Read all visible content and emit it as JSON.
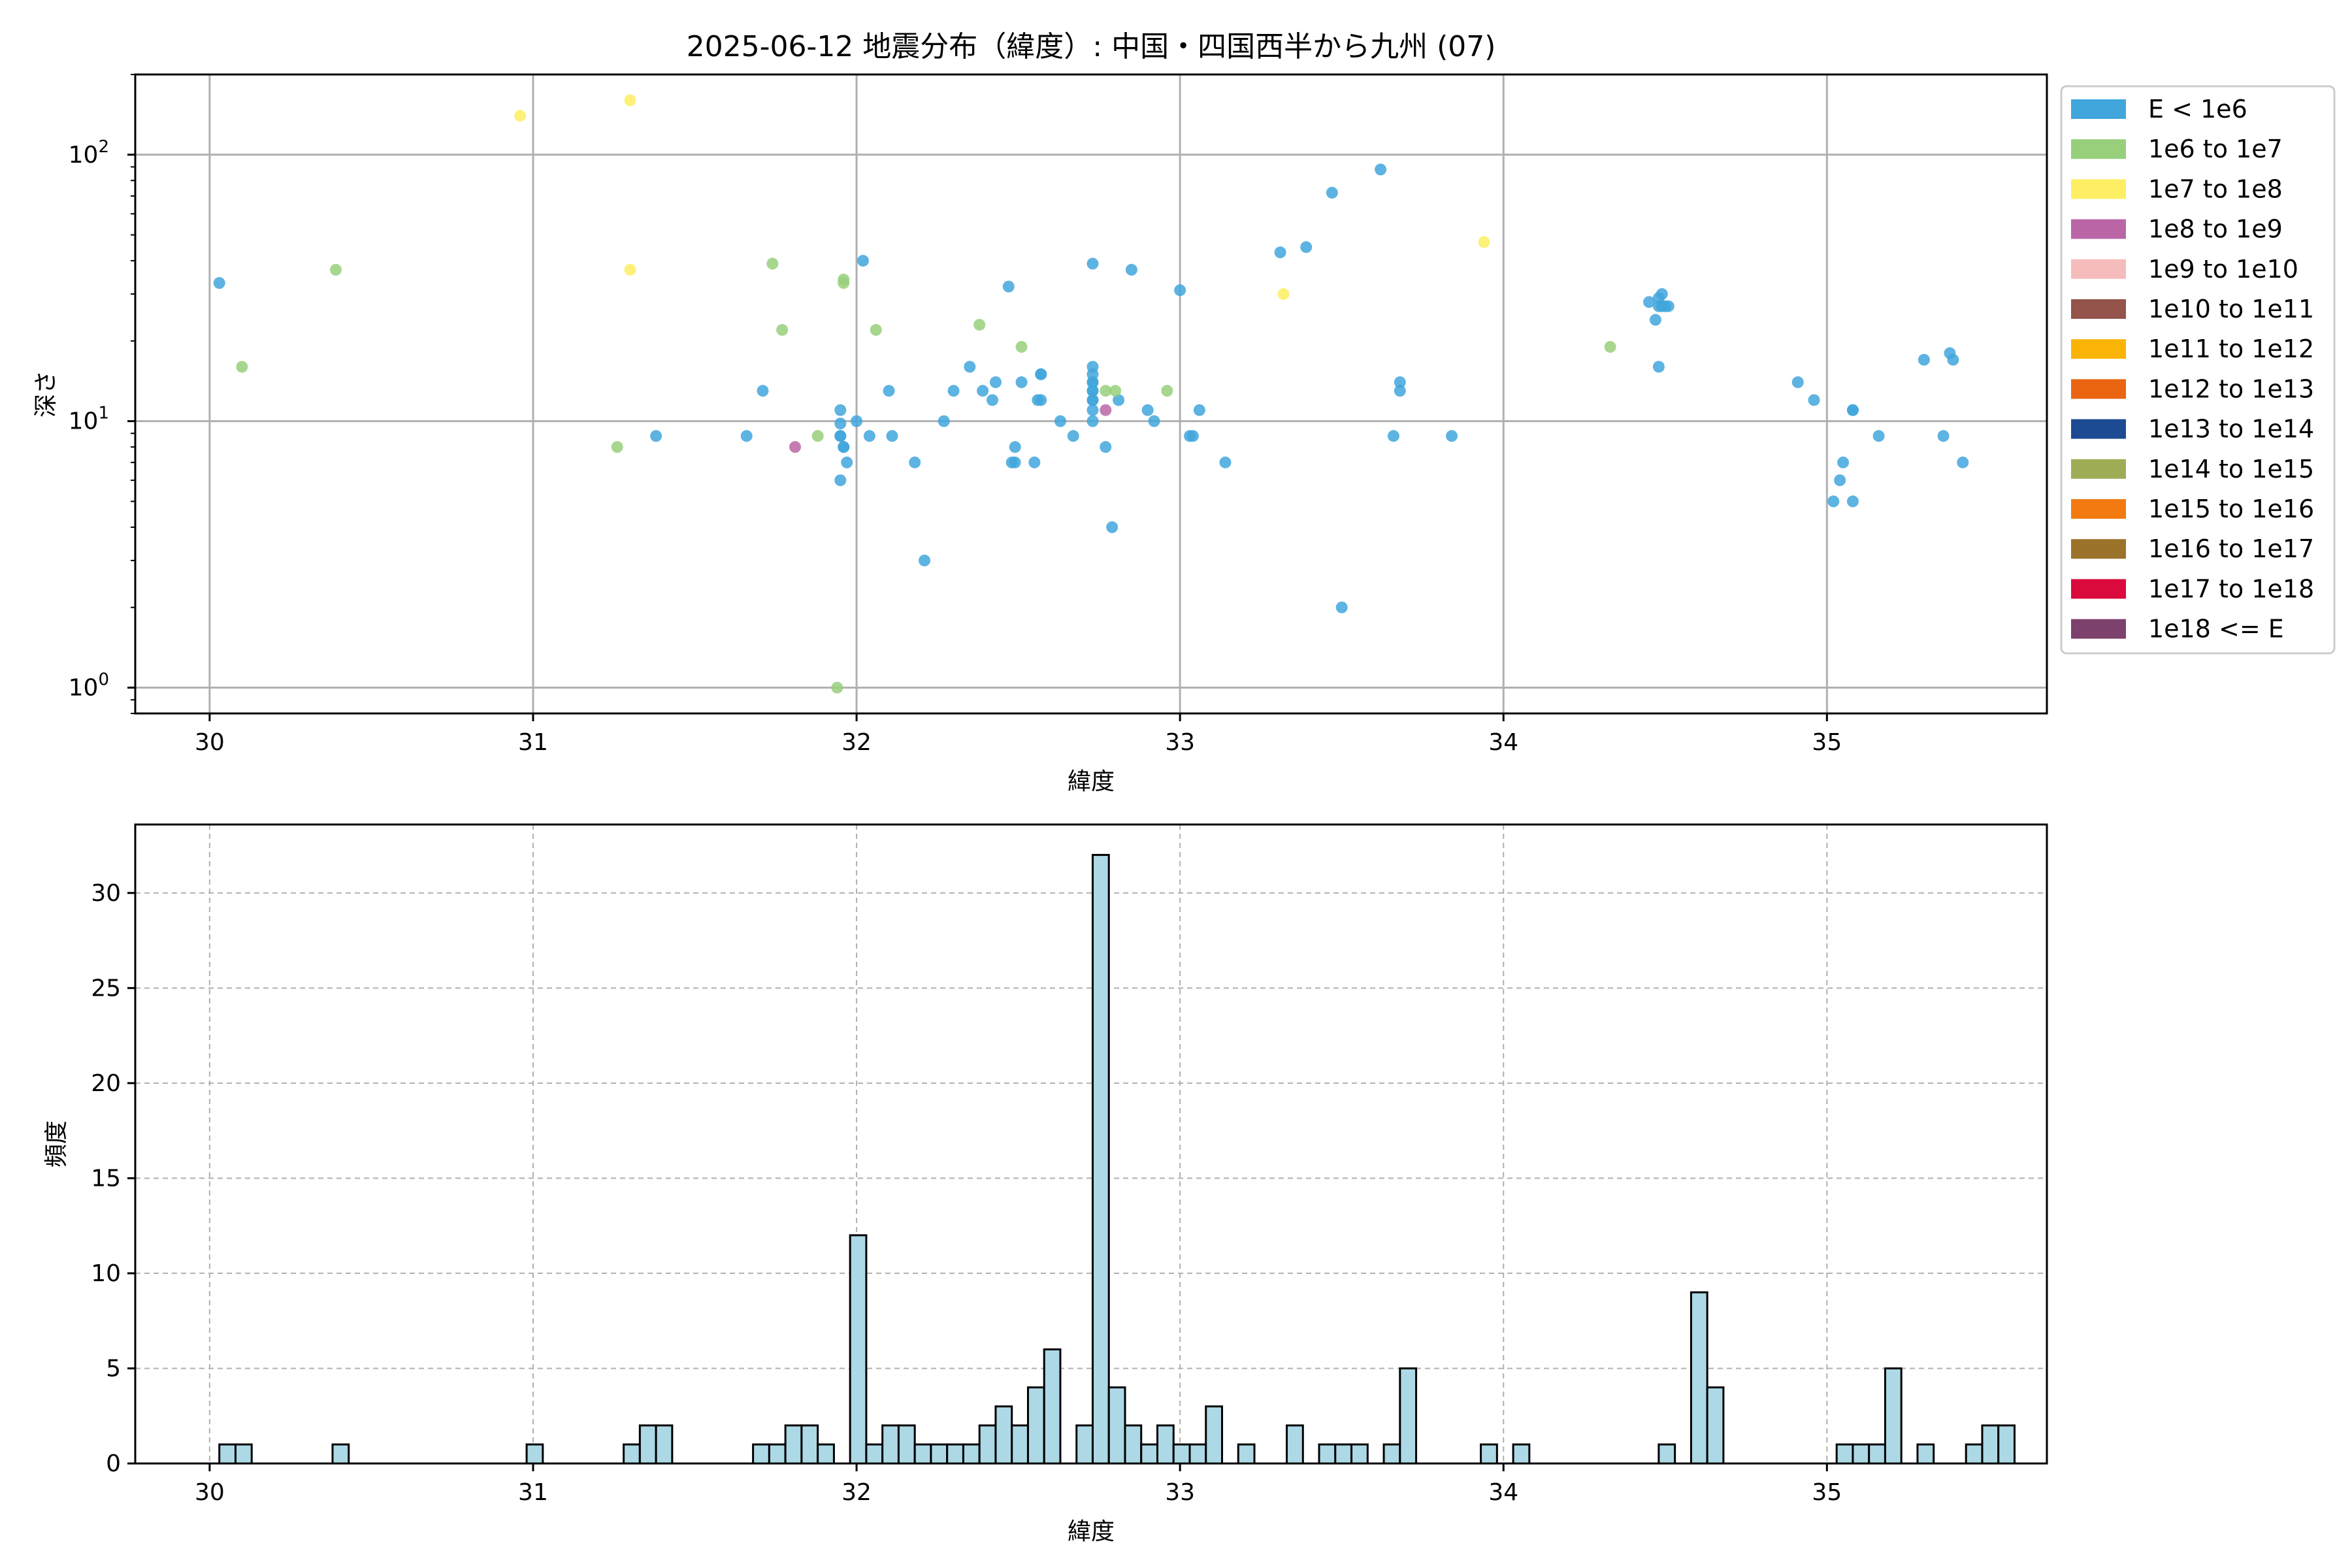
{
  "chart_data": [
    {
      "type": "scatter",
      "title": "2025-06-12 地震分布（緯度）: 中国・四国西半から九州 (07)",
      "xlabel": "緯度",
      "ylabel": "深さ",
      "xlim": [
        29.77,
        35.68
      ],
      "ylim": [
        200,
        0.8
      ],
      "yscale": "log",
      "yaxis_inverted": true,
      "x_ticks": [
        "30",
        "31",
        "32",
        "33",
        "34",
        "35"
      ],
      "y_ticks": [
        "10^0",
        "10^1",
        "10^2"
      ],
      "grid": true,
      "legend_position": "outside-right",
      "legend": [
        {
          "label": "E < 1e6",
          "color": "#41a6dc"
        },
        {
          "label": "1e6 to 1e7",
          "color": "#98cf7b"
        },
        {
          "label": "1e7 to 1e8",
          "color": "#fdee63"
        },
        {
          "label": "1e8 to 1e9",
          "color": "#ba66a6"
        },
        {
          "label": "1e9 to 1e10",
          "color": "#f6bcbc"
        },
        {
          "label": "1e10 to 1e11",
          "color": "#94534b"
        },
        {
          "label": "1e11 to 1e12",
          "color": "#fab408"
        },
        {
          "label": "1e12 to 1e13",
          "color": "#ea6411"
        },
        {
          "label": "1e13 to 1e14",
          "color": "#1c4b93"
        },
        {
          "label": "1e14 to 1e15",
          "color": "#9ead55"
        },
        {
          "label": "1e15 to 1e16",
          "color": "#f27a10"
        },
        {
          "label": "1e16 to 1e17",
          "color": "#9c732b"
        },
        {
          "label": "1e17 to 1e18",
          "color": "#da0a3c"
        },
        {
          "label": "1e18 <= E",
          "color": "#7c416d"
        }
      ],
      "series": [
        {
          "label": "E < 1e6",
          "color": "#41a6dc",
          "points": [
            [
              30.03,
              33.0
            ],
            [
              31.38,
              8.8
            ],
            [
              31.66,
              8.8
            ],
            [
              31.71,
              13.0
            ],
            [
              31.95,
              6.0
            ],
            [
              31.96,
              8.0
            ],
            [
              31.96,
              8.0
            ],
            [
              31.95,
              8.8
            ],
            [
              31.95,
              8.8
            ],
            [
              31.95,
              9.8
            ],
            [
              31.95,
              11.0
            ],
            [
              31.97,
              7.0
            ],
            [
              32.0,
              10.0
            ],
            [
              32.02,
              40.0
            ],
            [
              32.04,
              8.8
            ],
            [
              32.1,
              13.0
            ],
            [
              32.11,
              8.8
            ],
            [
              32.18,
              7.0
            ],
            [
              32.21,
              3.0
            ],
            [
              32.27,
              10.0
            ],
            [
              32.3,
              13.0
            ],
            [
              32.35,
              16.0
            ],
            [
              32.39,
              13.0
            ],
            [
              32.42,
              12.0
            ],
            [
              32.43,
              14.0
            ],
            [
              32.47,
              32.0
            ],
            [
              32.48,
              7.0
            ],
            [
              32.49,
              7.0
            ],
            [
              32.49,
              8.0
            ],
            [
              32.51,
              14.0
            ],
            [
              32.55,
              7.0
            ],
            [
              32.56,
              12.0
            ],
            [
              32.57,
              12.0
            ],
            [
              32.57,
              15.0
            ],
            [
              32.57,
              15.0
            ],
            [
              32.63,
              10.0
            ],
            [
              32.67,
              8.8
            ],
            [
              32.73,
              10.0
            ],
            [
              32.73,
              11.0
            ],
            [
              32.73,
              12.0
            ],
            [
              32.73,
              12.0
            ],
            [
              32.73,
              13.0
            ],
            [
              32.73,
              13.0
            ],
            [
              32.73,
              14.0
            ],
            [
              32.73,
              14.0
            ],
            [
              32.73,
              15.0
            ],
            [
              32.73,
              16.0
            ],
            [
              32.73,
              39.0
            ],
            [
              32.77,
              8.0
            ],
            [
              32.79,
              4.0
            ],
            [
              32.81,
              12.0
            ],
            [
              32.85,
              37.0
            ],
            [
              32.9,
              11.0
            ],
            [
              32.92,
              10.0
            ],
            [
              33.0,
              31.0
            ],
            [
              33.03,
              8.8
            ],
            [
              33.04,
              8.8
            ],
            [
              33.06,
              11.0
            ],
            [
              33.14,
              7.0
            ],
            [
              33.31,
              43.0
            ],
            [
              33.39,
              45.0
            ],
            [
              33.47,
              72.0
            ],
            [
              33.5,
              2.0
            ],
            [
              33.62,
              88.0
            ],
            [
              33.66,
              8.8
            ],
            [
              33.68,
              13.0
            ],
            [
              33.68,
              14.0
            ],
            [
              33.84,
              8.8
            ],
            [
              34.45,
              28.0
            ],
            [
              34.47,
              24.0
            ],
            [
              34.48,
              16.0
            ],
            [
              34.48,
              27.0
            ],
            [
              34.48,
              29.0
            ],
            [
              34.49,
              30.0
            ],
            [
              34.49,
              27.0
            ],
            [
              34.5,
              27.0
            ],
            [
              34.51,
              27.0
            ],
            [
              34.91,
              14.0
            ],
            [
              34.96,
              12.0
            ],
            [
              35.02,
              5.0
            ],
            [
              35.04,
              6.0
            ],
            [
              35.05,
              7.0
            ],
            [
              35.08,
              5.0
            ],
            [
              35.08,
              11.0
            ],
            [
              35.08,
              11.0
            ],
            [
              35.16,
              8.8
            ],
            [
              35.3,
              17.0
            ],
            [
              35.36,
              8.8
            ],
            [
              35.38,
              18.0
            ],
            [
              35.39,
              17.0
            ],
            [
              35.42,
              7.0
            ]
          ]
        },
        {
          "label": "1e6 to 1e7",
          "color": "#98cf7b",
          "points": [
            [
              30.1,
              16.0
            ],
            [
              30.39,
              37.0
            ],
            [
              31.26,
              8.0
            ],
            [
              31.74,
              39.0
            ],
            [
              31.77,
              22.0
            ],
            [
              31.88,
              8.8
            ],
            [
              31.94,
              1.0
            ],
            [
              31.96,
              33.0
            ],
            [
              31.96,
              34.0
            ],
            [
              32.06,
              22.0
            ],
            [
              32.38,
              23.0
            ],
            [
              32.51,
              19.0
            ],
            [
              32.77,
              13.0
            ],
            [
              32.8,
              13.0
            ],
            [
              32.96,
              13.0
            ],
            [
              34.33,
              19.0
            ]
          ]
        },
        {
          "label": "1e7 to 1e8",
          "color": "#fdee63",
          "points": [
            [
              30.96,
              140.0
            ],
            [
              31.3,
              37.0
            ],
            [
              31.3,
              160.0
            ],
            [
              33.32,
              30.0
            ],
            [
              33.94,
              47.0
            ]
          ]
        },
        {
          "label": "1e8 to 1e9",
          "color": "#ba66a6",
          "points": [
            [
              31.81,
              8.0
            ],
            [
              32.77,
              11.0
            ]
          ]
        }
      ]
    },
    {
      "type": "bar",
      "xlabel": "緯度",
      "ylabel": "頻度",
      "xlim": [
        29.77,
        35.68
      ],
      "ylim": [
        0,
        33.6
      ],
      "x_ticks": [
        "30",
        "31",
        "32",
        "33",
        "34",
        "35"
      ],
      "y_ticks": [
        "0",
        "5",
        "10",
        "15",
        "20",
        "25",
        "30"
      ],
      "grid": true,
      "color": "#add8e6",
      "edgecolor": "#000000",
      "bin_start": 30.03,
      "bin_width": 0.05,
      "values": [
        1,
        1,
        0,
        0,
        0,
        0,
        0,
        1,
        0,
        0,
        0,
        0,
        0,
        0,
        0,
        0,
        0,
        0,
        0,
        1,
        0,
        0,
        0,
        0,
        0,
        1,
        2,
        2,
        0,
        0,
        0,
        0,
        0,
        1,
        1,
        2,
        2,
        1,
        0,
        12,
        1,
        2,
        2,
        1,
        1,
        1,
        1,
        2,
        3,
        2,
        4,
        6,
        0,
        2,
        32,
        4,
        2,
        1,
        2,
        1,
        1,
        3,
        0,
        1,
        0,
        0,
        2,
        0,
        1,
        1,
        1,
        0,
        1,
        5,
        0,
        0,
        0,
        0,
        1,
        0,
        1,
        0,
        0,
        0,
        0,
        0,
        0,
        0,
        0,
        1,
        0,
        9,
        4,
        0,
        0,
        0,
        0,
        0,
        0,
        0,
        1,
        1,
        1,
        5,
        0,
        1,
        0,
        0,
        1,
        2,
        2
      ]
    }
  ]
}
